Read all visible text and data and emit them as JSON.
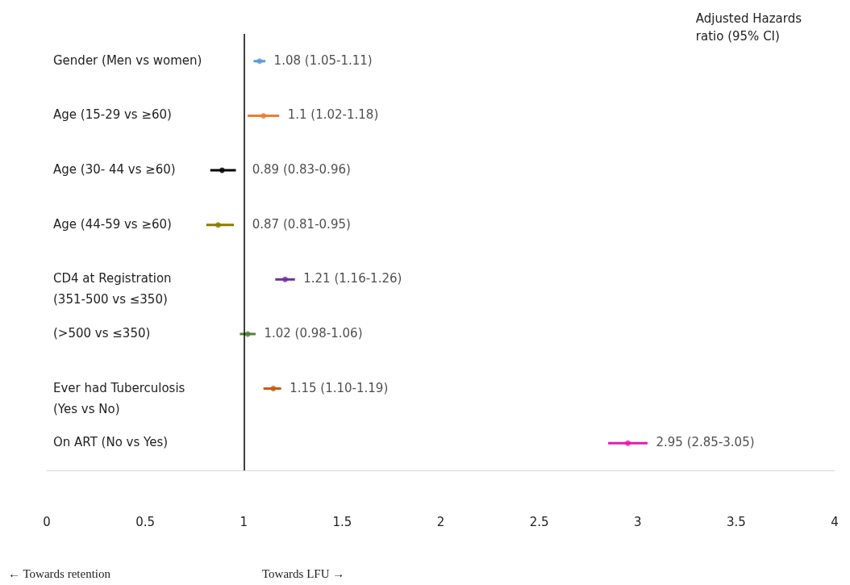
{
  "chart_data": {
    "type": "scatter",
    "orientation": "horizontal",
    "marker": "circle",
    "categories": [
      "Gender (Men vs women)",
      "Age (15-29 vs ≥60)",
      "Age (30- 44 vs ≥60)",
      "Age (44-59 vs ≥60)",
      "CD4 at Registration\n(351-500 vs ≤350)",
      "(>500 vs ≤350)",
      "Ever had Tuberculosis\n(Yes vs No)",
      "On ART (No vs Yes)"
    ],
    "values": [
      1.08,
      1.1,
      0.89,
      0.87,
      1.21,
      1.02,
      1.15,
      2.95
    ],
    "errors": [
      [
        1.05,
        1.11
      ],
      [
        1.02,
        1.18
      ],
      [
        0.83,
        0.96
      ],
      [
        0.81,
        0.95
      ],
      [
        1.16,
        1.26
      ],
      [
        0.98,
        1.06
      ],
      [
        1.1,
        1.19
      ],
      [
        2.85,
        3.05
      ]
    ],
    "colors": [
      "#5b9bd5",
      "#ed7d31",
      "#000000",
      "#8c7a00",
      "#7030a0",
      "#548235",
      "#c55a11",
      "#e619b4"
    ],
    "value_labels": [
      "1.08 (1.05-1.11)",
      "1.1 (1.02-1.18)",
      "0.89 (0.83-0.96)",
      "0.87 (0.81-0.95)",
      "1.21 (1.16-1.26)",
      "1.02 (0.98-1.06)",
      "1.15 (1.10-1.19)",
      "2.95 (2.85-3.05)"
    ],
    "xlim": [
      0,
      4
    ],
    "xticks": [
      0,
      0.5,
      1,
      1.5,
      2,
      2.5,
      3,
      3.5,
      4
    ],
    "grid": false,
    "ref_lines": [
      {
        "axis": "x",
        "value": 1,
        "color": "#000000"
      }
    ],
    "annotations": [
      "Adjusted Hazards ratio (95% CI)",
      "← Towards retention",
      "Towards LFU →"
    ]
  }
}
